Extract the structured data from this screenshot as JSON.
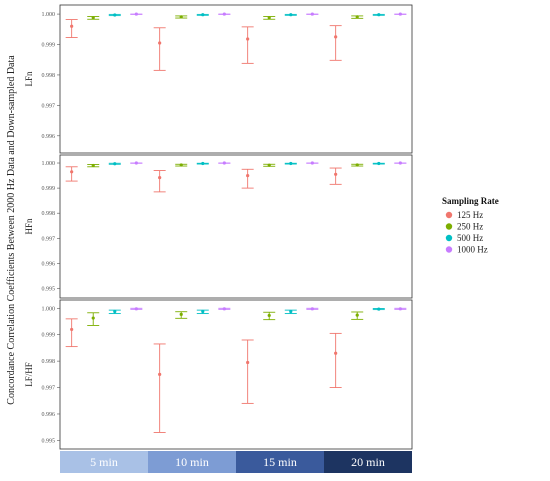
{
  "chart_data": {
    "type": "scatter",
    "ylabel": "Concordance Correlation Coefficients Between 2000 Hz Data and Down-sampled Data",
    "legend": {
      "title": "Sampling Rate",
      "placement": "right",
      "items": [
        {
          "label": "125 Hz",
          "color": "#f0766d"
        },
        {
          "label": "250 Hz",
          "color": "#7cae00"
        },
        {
          "label": "500 Hz",
          "color": "#00bfc4"
        },
        {
          "label": "1000 Hz",
          "color": "#c77cff"
        }
      ]
    },
    "categories": [
      "5 min",
      "10 min",
      "15 min",
      "20 min"
    ],
    "category_colors": [
      "#a9c1e6",
      "#7d9cd4",
      "#3a5a9c",
      "#1d3461"
    ],
    "grid": false,
    "panels": [
      {
        "label": "LFn",
        "ylim": [
          0.9955,
          1.0002
        ],
        "yticks": [
          "0.996",
          "0.997",
          "0.998",
          "0.999",
          "1.000"
        ],
        "series": [
          {
            "name": "125 Hz",
            "mean": [
              0.9996,
              0.99905,
              0.99918,
              0.99925
            ],
            "lower": [
              0.99923,
              0.99815,
              0.99838,
              0.99848
            ],
            "upper": [
              0.99982,
              0.99955,
              0.99958,
              0.99962
            ]
          },
          {
            "name": "250 Hz",
            "mean": [
              0.99988,
              0.99991,
              0.99988,
              0.99991
            ],
            "lower": [
              0.99983,
              0.99987,
              0.99983,
              0.99986
            ],
            "upper": [
              0.99992,
              0.99994,
              0.99992,
              0.99994
            ]
          },
          {
            "name": "500 Hz",
            "mean": [
              0.99997,
              0.99998,
              0.99998,
              0.99998
            ],
            "lower": [
              0.99995,
              0.99996,
              0.99996,
              0.99996
            ],
            "upper": [
              0.99999,
              0.99999,
              0.99999,
              0.99999
            ]
          },
          {
            "name": "1000 Hz",
            "mean": [
              1.0,
              1.0,
              1.0,
              1.0
            ],
            "lower": [
              0.99999,
              0.99999,
              0.99999,
              0.99999
            ],
            "upper": [
              1.0,
              1.0,
              1.0,
              1.0
            ]
          }
        ]
      },
      {
        "label": "HFn",
        "ylim": [
          0.9947,
          1.0002
        ],
        "yticks": [
          "0.995",
          "0.996",
          "0.997",
          "0.998",
          "0.999",
          "1.000"
        ],
        "series": [
          {
            "name": "125 Hz",
            "mean": [
              0.99965,
              0.99942,
              0.9995,
              0.99955
            ],
            "lower": [
              0.99928,
              0.99885,
              0.999,
              0.99915
            ],
            "upper": [
              0.99985,
              0.9997,
              0.99975,
              0.9998
            ]
          },
          {
            "name": "250 Hz",
            "mean": [
              0.9999,
              0.99992,
              0.99991,
              0.99992
            ],
            "lower": [
              0.99985,
              0.99988,
              0.99987,
              0.99988
            ],
            "upper": [
              0.99994,
              0.99995,
              0.99995,
              0.99995
            ]
          },
          {
            "name": "500 Hz",
            "mean": [
              0.99997,
              0.99998,
              0.99998,
              0.99998
            ],
            "lower": [
              0.99995,
              0.99996,
              0.99996,
              0.99996
            ],
            "upper": [
              0.99999,
              0.99999,
              0.99999,
              0.99999
            ]
          },
          {
            "name": "1000 Hz",
            "mean": [
              1.0,
              1.0,
              1.0,
              1.0
            ],
            "lower": [
              0.99999,
              0.99999,
              0.99999,
              0.99999
            ],
            "upper": [
              1.0,
              1.0,
              1.0,
              1.0
            ]
          }
        ]
      },
      {
        "label": "LF/HF",
        "ylim": [
          0.99475,
          1.0002
        ],
        "yticks": [
          "0.995",
          "0.996",
          "0.997",
          "0.998",
          "0.999",
          "1.000"
        ],
        "series": [
          {
            "name": "125 Hz",
            "mean": [
              0.9992,
              0.9975,
              0.99795,
              0.9983
            ],
            "lower": [
              0.99855,
              0.9953,
              0.9964,
              0.997
            ],
            "upper": [
              0.9996,
              0.99865,
              0.9988,
              0.99905
            ]
          },
          {
            "name": "250 Hz",
            "mean": [
              0.99963,
              0.99977,
              0.99973,
              0.99974
            ],
            "lower": [
              0.99935,
              0.99962,
              0.99957,
              0.99958
            ],
            "upper": [
              0.99983,
              0.99987,
              0.99985,
              0.99986
            ]
          },
          {
            "name": "500 Hz",
            "mean": [
              0.99988,
              0.99988,
              0.99988,
              0.99997
            ],
            "lower": [
              0.9998,
              0.9998,
              0.9998,
              0.99995
            ],
            "upper": [
              0.99993,
              0.99993,
              0.99993,
              0.99999
            ]
          },
          {
            "name": "1000 Hz",
            "mean": [
              0.99998,
              0.99998,
              0.99998,
              0.99998
            ],
            "lower": [
              0.99996,
              0.99996,
              0.99996,
              0.99996
            ],
            "upper": [
              1.0,
              1.0,
              1.0,
              1.0
            ]
          }
        ]
      }
    ]
  }
}
